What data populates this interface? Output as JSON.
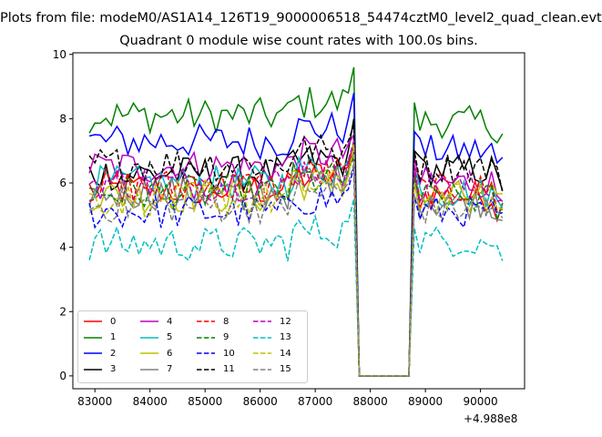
{
  "page_title": "Plots from file: modeM0/AS1A14_126T19_9000006518_54474cztM0_level2_quad_clean.evt",
  "chart_data": {
    "type": "line",
    "title": "Quadrant 0 module wise count rates with 100.0s bins.",
    "xlabel": "",
    "ylabel": "",
    "x_offset_label": "+4.988e8",
    "xlim": [
      82600,
      90800
    ],
    "ylim": [
      -0.4,
      10.05
    ],
    "x_ticks": [
      83000,
      84000,
      85000,
      86000,
      87000,
      88000,
      89000,
      90000
    ],
    "x_tick_labels": [
      "83000",
      "84000",
      "85000",
      "86000",
      "87000",
      "88000",
      "89000",
      "90000"
    ],
    "y_ticks": [
      0,
      2,
      4,
      6,
      8,
      10
    ],
    "y_tick_labels": [
      "0",
      "2",
      "4",
      "6",
      "8",
      "10"
    ],
    "grid": false,
    "legend_position": "lower-left",
    "x_range": {
      "start": 82900,
      "step": 100,
      "gap_start": 87800,
      "gap_end": 88700,
      "end": 90400
    },
    "series": [
      {
        "name": "0",
        "color": "#ff0000",
        "dash": false,
        "mean_before": 5.8,
        "mean_after": 5.6,
        "peak": 7.2,
        "spike_after": 6.4
      },
      {
        "name": "1",
        "color": "#008000",
        "dash": false,
        "mean_before": 8.1,
        "mean_after": 7.9,
        "peak": 9.6,
        "spike_after": 8.5
      },
      {
        "name": "2",
        "color": "#0000ff",
        "dash": false,
        "mean_before": 7.3,
        "mean_after": 7.0,
        "peak": 8.8,
        "spike_after": 7.6
      },
      {
        "name": "3",
        "color": "#000000",
        "dash": false,
        "mean_before": 6.3,
        "mean_after": 6.4,
        "peak": 8.0,
        "spike_after": 7.0
      },
      {
        "name": "4",
        "color": "#bf00bf",
        "dash": false,
        "mean_before": 6.5,
        "mean_after": 6.0,
        "peak": 7.5,
        "spike_after": 6.8
      },
      {
        "name": "5",
        "color": "#00bfbf",
        "dash": false,
        "mean_before": 6.0,
        "mean_after": 5.7,
        "peak": 7.2,
        "spike_after": 6.5
      },
      {
        "name": "6",
        "color": "#bfbf00",
        "dash": false,
        "mean_before": 5.6,
        "mean_after": 5.6,
        "peak": 7.0,
        "spike_after": 6.2
      },
      {
        "name": "7",
        "color": "#808080",
        "dash": false,
        "mean_before": 5.7,
        "mean_after": 5.4,
        "peak": 7.0,
        "spike_after": 6.2
      },
      {
        "name": "8",
        "color": "#ff0000",
        "dash": true,
        "mean_before": 5.9,
        "mean_after": 5.8,
        "peak": 7.2,
        "spike_after": 6.5
      },
      {
        "name": "9",
        "color": "#008000",
        "dash": true,
        "mean_before": 5.7,
        "mean_after": 5.5,
        "peak": 6.8,
        "spike_after": 6.2
      },
      {
        "name": "10",
        "color": "#0000ff",
        "dash": true,
        "mean_before": 5.1,
        "mean_after": 5.1,
        "peak": 6.5,
        "spike_after": 5.6
      },
      {
        "name": "11",
        "color": "#000000",
        "dash": true,
        "mean_before": 6.6,
        "mean_after": 6.5,
        "peak": 7.8,
        "spike_after": 7.0
      },
      {
        "name": "12",
        "color": "#bf00bf",
        "dash": true,
        "mean_before": 6.0,
        "mean_after": 5.9,
        "peak": 7.3,
        "spike_after": 6.5
      },
      {
        "name": "13",
        "color": "#00bfbf",
        "dash": true,
        "mean_before": 4.1,
        "mean_after": 4.2,
        "peak": 5.5,
        "spike_after": 4.6
      },
      {
        "name": "14",
        "color": "#bfbf00",
        "dash": true,
        "mean_before": 5.5,
        "mean_after": 5.5,
        "peak": 7.2,
        "spike_after": 6.0
      },
      {
        "name": "15",
        "color": "#808080",
        "dash": true,
        "mean_before": 5.3,
        "mean_after": 5.2,
        "peak": 6.6,
        "spike_after": 5.6
      }
    ]
  }
}
